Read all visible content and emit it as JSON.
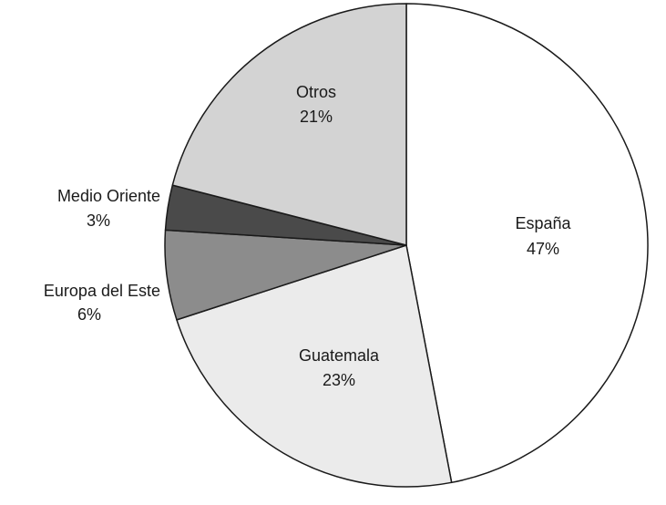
{
  "chart_data": {
    "type": "pie",
    "title": "",
    "slices": [
      {
        "label": "España",
        "value": 47,
        "value_label": "47%",
        "color": "#ffffff"
      },
      {
        "label": "Guatemala",
        "value": 23,
        "value_label": "23%",
        "color": "#ebebeb"
      },
      {
        "label": "Europa del Este",
        "value": 6,
        "value_label": "6%",
        "color": "#8c8c8c"
      },
      {
        "label": "Medio Oriente",
        "value": 3,
        "value_label": "3%",
        "color": "#4a4a4a"
      },
      {
        "label": "Otros",
        "value": 21,
        "value_label": "21%",
        "color": "#d3d3d3"
      }
    ],
    "start_angle": "12 o'clock",
    "direction": "clockwise",
    "stroke_color": "#1a1a1a",
    "legend": "none"
  }
}
